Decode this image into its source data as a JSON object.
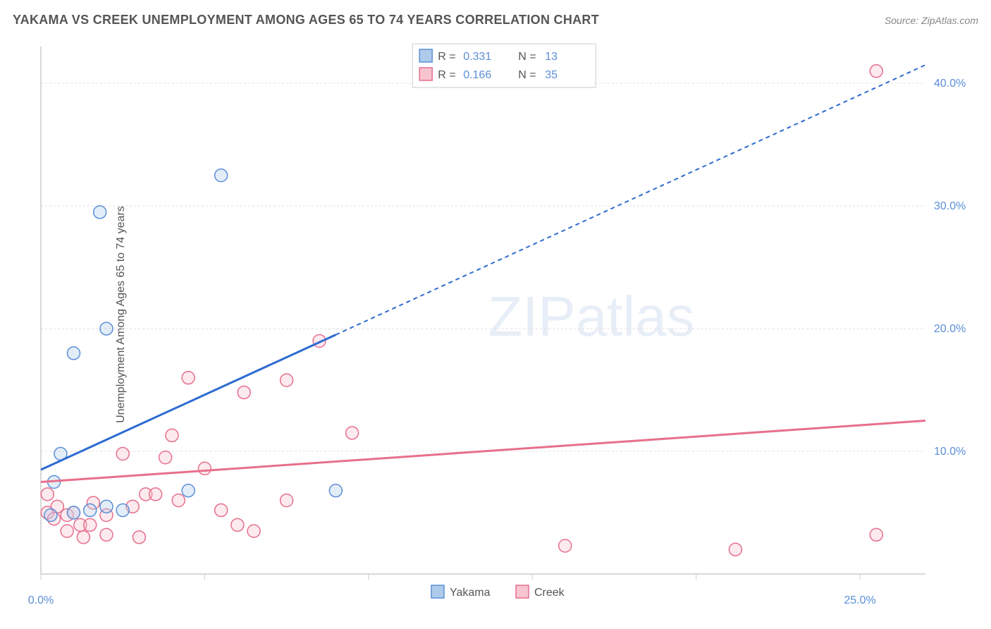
{
  "title": "YAKAMA VS CREEK UNEMPLOYMENT AMONG AGES 65 TO 74 YEARS CORRELATION CHART",
  "source": "Source: ZipAtlas.com",
  "ylabel": "Unemployment Among Ages 65 to 74 years",
  "watermark_a": "ZIP",
  "watermark_b": "atlas",
  "chart": {
    "type": "scatter",
    "xlim": [
      0,
      27
    ],
    "ylim": [
      0,
      43
    ],
    "x_ticks": [
      0,
      5,
      10,
      15,
      20,
      25
    ],
    "x_tick_labels": [
      "0.0%",
      "",
      "",
      "",
      "",
      "25.0%"
    ],
    "y_ticks": [
      10,
      20,
      30,
      40
    ],
    "y_tick_labels": [
      "10.0%",
      "20.0%",
      "30.0%",
      "40.0%"
    ],
    "grid_color": "#e0e0e0",
    "axis_color": "#cccccc",
    "background_color": "#ffffff",
    "series": [
      {
        "name": "Yakama",
        "marker_fill": "#aecbeb",
        "marker_stroke": "#5b8fd6",
        "line_color": "#2e6bd0",
        "marker_radius": 9,
        "R_label": "R =",
        "R": "0.331",
        "N_label": "N =",
        "N": "13",
        "trend": {
          "x1": 0,
          "y1": 8.5,
          "x2_solid": 9.0,
          "y2_solid": 19.5,
          "x2": 27,
          "y2": 41.5
        },
        "points": [
          [
            0.3,
            4.8
          ],
          [
            0.4,
            7.5
          ],
          [
            0.6,
            9.8
          ],
          [
            1.0,
            18.0
          ],
          [
            1.0,
            5.0
          ],
          [
            1.5,
            5.2
          ],
          [
            1.8,
            29.5
          ],
          [
            2.0,
            5.5
          ],
          [
            2.0,
            20.0
          ],
          [
            2.5,
            5.2
          ],
          [
            4.5,
            6.8
          ],
          [
            5.5,
            32.5
          ],
          [
            9.0,
            6.8
          ]
        ]
      },
      {
        "name": "Creek",
        "marker_fill": "#f7c4cf",
        "marker_stroke": "#e76f8c",
        "line_color": "#e76f8c",
        "marker_radius": 9,
        "R_label": "R =",
        "R": "0.166",
        "N_label": "N =",
        "N": "35",
        "trend": {
          "x1": 0,
          "y1": 7.5,
          "x2_solid": 27,
          "y2_solid": 12.5,
          "x2": 27,
          "y2": 12.5
        },
        "points": [
          [
            0.2,
            6.5
          ],
          [
            0.2,
            5.0
          ],
          [
            0.4,
            4.5
          ],
          [
            0.5,
            5.5
          ],
          [
            0.8,
            4.8
          ],
          [
            0.8,
            3.5
          ],
          [
            1.0,
            5.0
          ],
          [
            1.2,
            4.0
          ],
          [
            1.3,
            3.0
          ],
          [
            1.5,
            4.0
          ],
          [
            1.6,
            5.8
          ],
          [
            2.0,
            4.8
          ],
          [
            2.0,
            3.2
          ],
          [
            2.5,
            9.8
          ],
          [
            2.8,
            5.5
          ],
          [
            3.0,
            3.0
          ],
          [
            3.2,
            6.5
          ],
          [
            3.5,
            6.5
          ],
          [
            3.8,
            9.5
          ],
          [
            4.0,
            11.3
          ],
          [
            4.2,
            6.0
          ],
          [
            4.5,
            16.0
          ],
          [
            5.0,
            8.6
          ],
          [
            5.5,
            5.2
          ],
          [
            6.0,
            4.0
          ],
          [
            6.2,
            14.8
          ],
          [
            6.5,
            3.5
          ],
          [
            7.5,
            15.8
          ],
          [
            7.5,
            6.0
          ],
          [
            8.5,
            19.0
          ],
          [
            9.5,
            11.5
          ],
          [
            16.0,
            2.3
          ],
          [
            21.2,
            2.0
          ],
          [
            25.5,
            3.2
          ],
          [
            25.5,
            41.0
          ]
        ]
      }
    ]
  },
  "stats_legend_border": "#cccccc",
  "bottom_legend": [
    {
      "label": "Yakama",
      "fill": "#aecbeb",
      "stroke": "#5b8fd6"
    },
    {
      "label": "Creek",
      "fill": "#f7c4cf",
      "stroke": "#e76f8c"
    }
  ]
}
